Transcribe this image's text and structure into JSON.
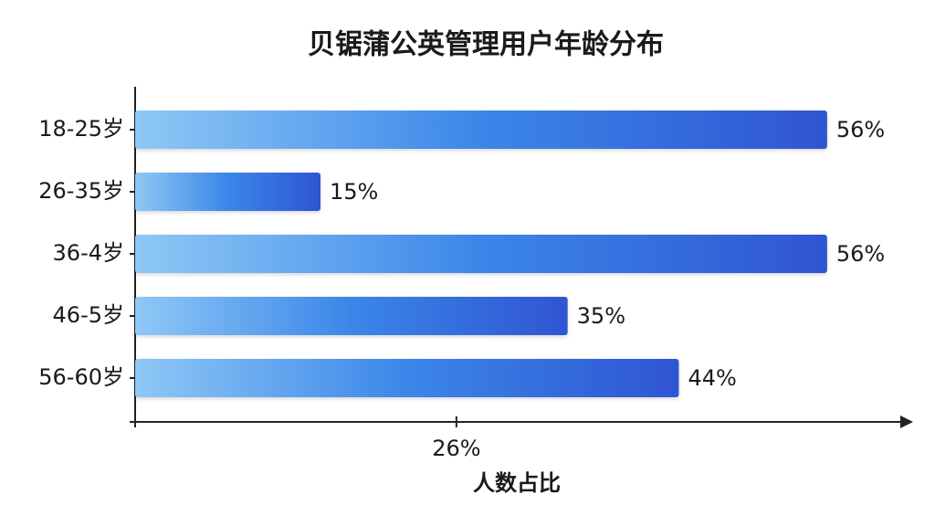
{
  "chart_data": {
    "type": "bar",
    "orientation": "horizontal",
    "title": "贝锯蒲公英管理用户年龄分布",
    "x_label": "人数占比",
    "categories": [
      "18-25岁",
      "26-35岁",
      "36-4岁",
      "46-5岁",
      "56-60岁"
    ],
    "values": [
      56,
      15,
      56,
      35,
      44
    ],
    "value_labels": [
      "56%",
      "15%",
      "56%",
      "35%",
      "44%"
    ],
    "gradient": [
      "#8fc8f6",
      "#3b86e9",
      "#2f55d2"
    ],
    "xlim": [
      0,
      60
    ],
    "xticks": [
      {
        "value": 26,
        "label": "26%"
      }
    ]
  }
}
